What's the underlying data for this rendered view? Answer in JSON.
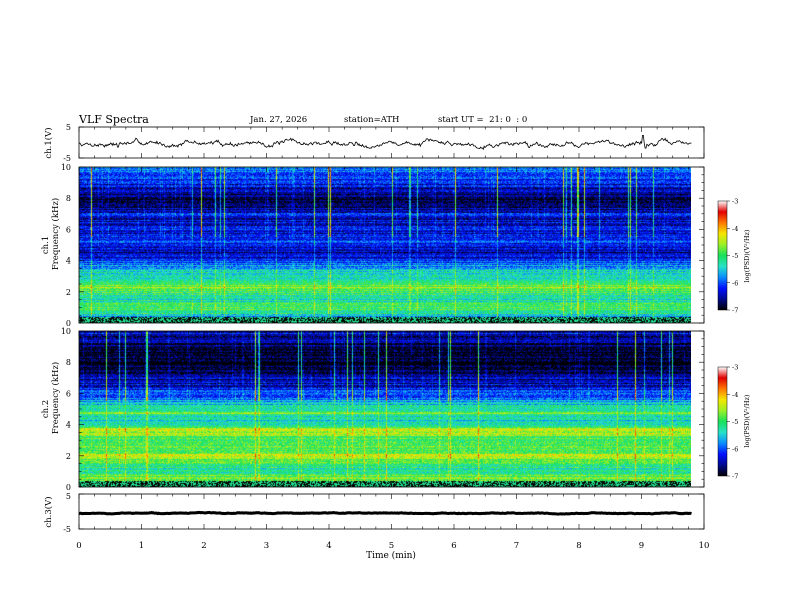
{
  "header": {
    "title": "VLF Spectra",
    "date": "Jan. 27, 2026",
    "station": "station=ATH",
    "start": "start UT =  21: 0  : 0"
  },
  "colors": {
    "colormap": [
      "#000000",
      "#000a8c",
      "#0010ff",
      "#0a8cff",
      "#28e1c8",
      "#19e15a",
      "#9bf028",
      "#f5e600",
      "#ff7800",
      "#e10000",
      "#ffffff"
    ],
    "trace": "#000000"
  },
  "chart_data": [
    {
      "type": "line",
      "panel": "ch1-waveform",
      "ylabel": "ch.1(V)",
      "ylim": [
        -5,
        5
      ],
      "yticks": [
        "5",
        "-5"
      ],
      "x_end_min": 9.8,
      "baseline": -0.3,
      "spikes": [
        [
          0.62,
          -1.5
        ],
        [
          1.55,
          -1.2
        ],
        [
          4.4,
          -1.0
        ],
        [
          6.45,
          -1.8
        ],
        [
          7.2,
          -1.6
        ],
        [
          9.02,
          2.3
        ],
        [
          9.06,
          -1.8
        ]
      ],
      "grid": false
    },
    {
      "type": "heatmap",
      "panel": "ch1-spectrogram",
      "ylabel": "Frequency (kHz)",
      "chlabel": "ch.1",
      "ylim": [
        0,
        10
      ],
      "yticks": [
        "0",
        "2",
        "4",
        "6",
        "8",
        "10"
      ],
      "x_end_min": 9.8,
      "band_profile_log10": [
        [
          0.0,
          -6.8
        ],
        [
          0.3,
          -6.0
        ],
        [
          0.6,
          -5.2
        ],
        [
          1.0,
          -5.0
        ],
        [
          1.5,
          -5.3
        ],
        [
          2.0,
          -5.0
        ],
        [
          2.3,
          -4.7
        ],
        [
          2.6,
          -5.2
        ],
        [
          3.0,
          -5.4
        ],
        [
          3.4,
          -5.5
        ],
        [
          3.8,
          -5.8
        ],
        [
          4.2,
          -6.3
        ],
        [
          4.6,
          -6.6
        ],
        [
          5.0,
          -6.3
        ],
        [
          5.2,
          -5.9
        ],
        [
          5.6,
          -6.4
        ],
        [
          6.0,
          -6.1
        ],
        [
          6.5,
          -6.5
        ],
        [
          7.0,
          -6.3
        ],
        [
          7.5,
          -6.7
        ],
        [
          8.0,
          -6.8
        ],
        [
          8.5,
          -6.5
        ],
        [
          9.0,
          -6.2
        ],
        [
          9.5,
          -6.0
        ],
        [
          10.0,
          -5.8
        ]
      ],
      "colorbar": {
        "label": "log(PSD)(V²/Hz)",
        "range": [
          -7,
          -3
        ],
        "ticks": [
          "-3",
          "-4",
          "-5",
          "-6",
          "-7"
        ]
      }
    },
    {
      "type": "heatmap",
      "panel": "ch2-spectrogram",
      "ylabel": "Frequency (kHz)",
      "chlabel": "ch.2",
      "ylim": [
        0,
        10
      ],
      "yticks": [
        "0",
        "2",
        "4",
        "6",
        "8",
        "10"
      ],
      "x_end_min": 9.8,
      "band_profile_log10": [
        [
          0.0,
          -6.8
        ],
        [
          0.3,
          -5.0
        ],
        [
          0.6,
          -4.8
        ],
        [
          1.0,
          -5.2
        ],
        [
          1.5,
          -5.1
        ],
        [
          2.0,
          -4.4
        ],
        [
          2.3,
          -5.1
        ],
        [
          2.6,
          -5.0
        ],
        [
          3.0,
          -4.9
        ],
        [
          3.4,
          -4.6
        ],
        [
          3.7,
          -4.3
        ],
        [
          4.0,
          -5.4
        ],
        [
          4.4,
          -5.5
        ],
        [
          4.7,
          -4.8
        ],
        [
          5.0,
          -5.2
        ],
        [
          5.5,
          -5.7
        ],
        [
          6.0,
          -6.1
        ],
        [
          6.5,
          -6.4
        ],
        [
          7.0,
          -6.5
        ],
        [
          7.5,
          -6.7
        ],
        [
          8.0,
          -6.9
        ],
        [
          8.5,
          -6.9
        ],
        [
          9.0,
          -6.8
        ],
        [
          9.5,
          -6.6
        ],
        [
          10.0,
          -6.3
        ]
      ],
      "colorbar": {
        "label": "log(PSD)(V²/Hz)",
        "range": [
          -7,
          -3
        ],
        "ticks": [
          "-3",
          "-4",
          "-5",
          "-6",
          "-7"
        ]
      }
    },
    {
      "type": "line",
      "panel": "ch3-waveform",
      "ylabel": "ch.3(V)",
      "ylim": [
        -5,
        5
      ],
      "yticks": [
        "5",
        "-5"
      ],
      "x_end_min": 9.8,
      "baseline": -0.5,
      "spikes": [],
      "grid": false
    }
  ],
  "xaxis": {
    "label": "Time (min)",
    "range": [
      0,
      10
    ],
    "ticks": [
      "0",
      "1",
      "2",
      "3",
      "4",
      "5",
      "6",
      "7",
      "8",
      "9",
      "10"
    ]
  }
}
